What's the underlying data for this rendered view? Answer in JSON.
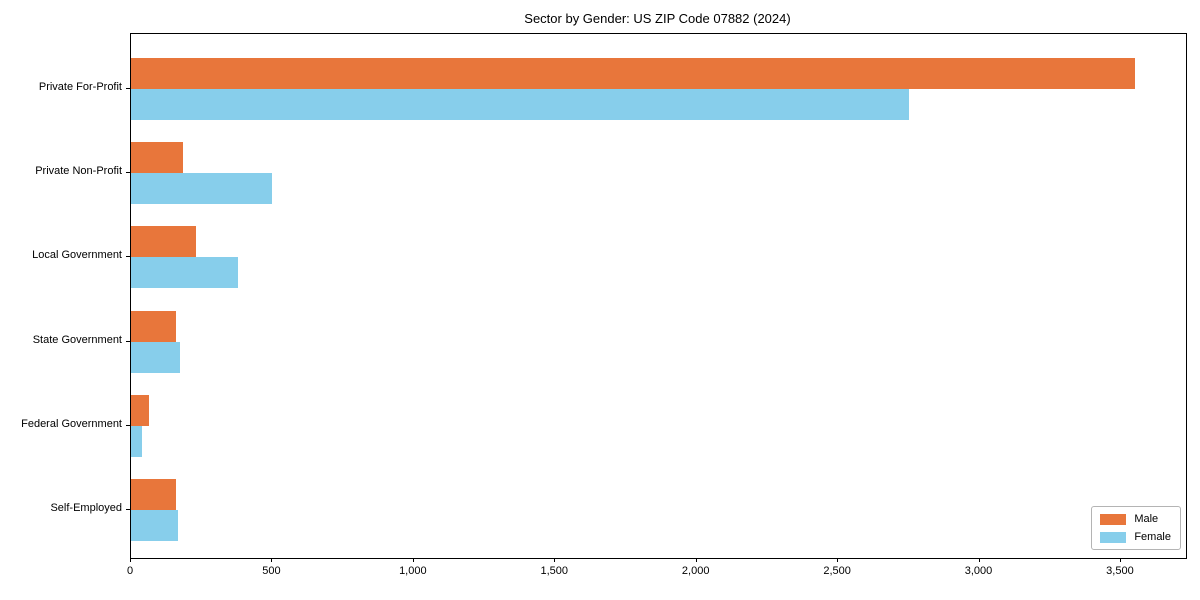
{
  "chart_data": {
    "type": "bar",
    "orientation": "horizontal",
    "title": "Sector by Gender: US ZIP Code 07882 (2024)",
    "categories": [
      "Private For-Profit",
      "Private Non-Profit",
      "Local Government",
      "State Government",
      "Federal Government",
      "Self-Employed"
    ],
    "series": [
      {
        "name": "Male",
        "color": "#E8763B",
        "values": [
          3550,
          185,
          230,
          160,
          65,
          160
        ]
      },
      {
        "name": "Female",
        "color": "#87CEEB",
        "values": [
          2750,
          500,
          380,
          175,
          40,
          165
        ]
      }
    ],
    "x_ticks": [
      "0",
      "500",
      "1,000",
      "1,500",
      "2,000",
      "2,500",
      "3,000",
      "3,500"
    ],
    "x_tick_values": [
      0,
      500,
      1000,
      1500,
      2000,
      2500,
      3000,
      3500
    ],
    "xlim": [
      0,
      3730
    ],
    "xlabel": "",
    "ylabel": "",
    "grid": false,
    "legend_position": "lower right"
  }
}
